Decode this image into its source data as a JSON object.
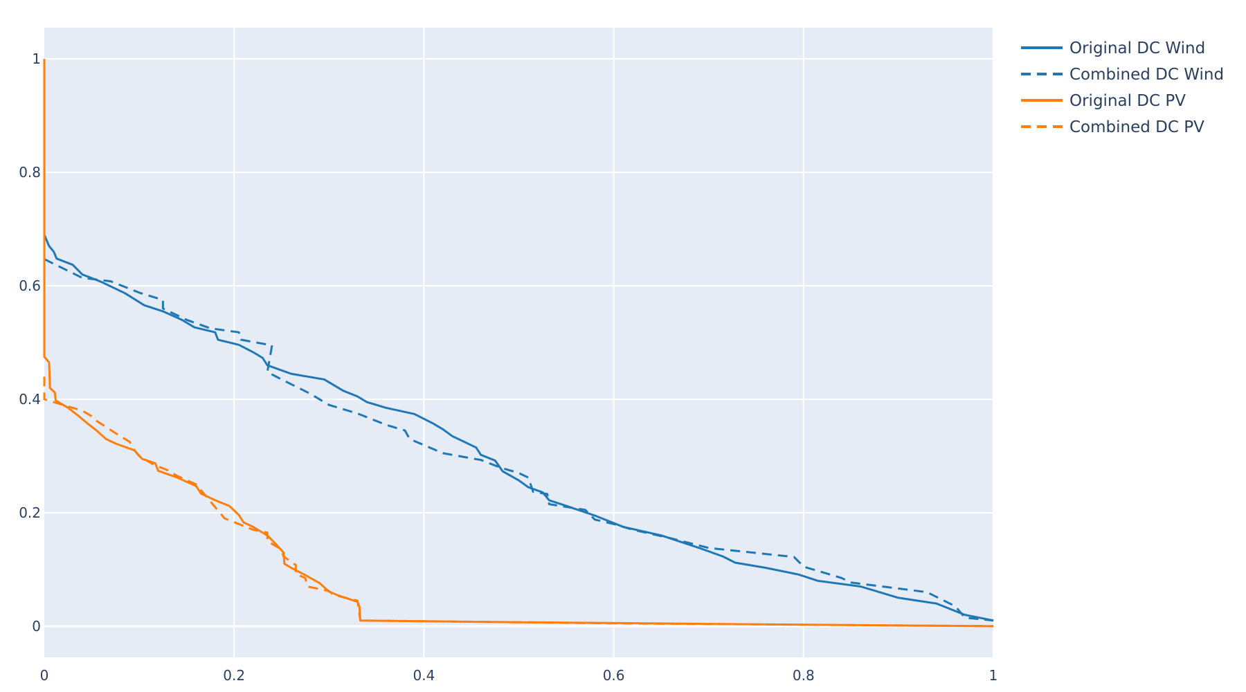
{
  "chart_data": {
    "type": "line",
    "title": "",
    "xlabel": "",
    "ylabel": "",
    "xlim": [
      0,
      1
    ],
    "ylim": [
      -0.055,
      1.055
    ],
    "x_ticks": [
      0,
      0.2,
      0.4,
      0.6,
      0.8,
      1
    ],
    "x_tick_labels": [
      "0",
      "0.2",
      "0.4",
      "0.6",
      "0.8",
      "1"
    ],
    "y_ticks": [
      0,
      0.2,
      0.4,
      0.6,
      0.8,
      1
    ],
    "y_tick_labels": [
      "0",
      "0.2",
      "0.4",
      "0.6",
      "0.8",
      "1"
    ],
    "grid": true,
    "plot_background": "#e5ecf6",
    "legend_position": "top-right outside plot",
    "series": [
      {
        "name": "Original DC Wind",
        "color": "#1f77b4",
        "dash": "solid",
        "points": [
          [
            0,
            0.69
          ],
          [
            0.005,
            0.67
          ],
          [
            0.01,
            0.66
          ],
          [
            0.013,
            0.648
          ],
          [
            0.03,
            0.637
          ],
          [
            0.04,
            0.62
          ],
          [
            0.06,
            0.607
          ],
          [
            0.085,
            0.587
          ],
          [
            0.105,
            0.566
          ],
          [
            0.125,
            0.555
          ],
          [
            0.145,
            0.54
          ],
          [
            0.158,
            0.527
          ],
          [
            0.18,
            0.518
          ],
          [
            0.183,
            0.505
          ],
          [
            0.205,
            0.496
          ],
          [
            0.22,
            0.483
          ],
          [
            0.23,
            0.473
          ],
          [
            0.235,
            0.46
          ],
          [
            0.26,
            0.445
          ],
          [
            0.295,
            0.435
          ],
          [
            0.315,
            0.415
          ],
          [
            0.33,
            0.405
          ],
          [
            0.34,
            0.395
          ],
          [
            0.36,
            0.385
          ],
          [
            0.39,
            0.374
          ],
          [
            0.41,
            0.357
          ],
          [
            0.42,
            0.347
          ],
          [
            0.43,
            0.335
          ],
          [
            0.455,
            0.315
          ],
          [
            0.46,
            0.302
          ],
          [
            0.475,
            0.292
          ],
          [
            0.483,
            0.273
          ],
          [
            0.5,
            0.257
          ],
          [
            0.51,
            0.245
          ],
          [
            0.525,
            0.236
          ],
          [
            0.532,
            0.222
          ],
          [
            0.55,
            0.212
          ],
          [
            0.58,
            0.195
          ],
          [
            0.61,
            0.175
          ],
          [
            0.65,
            0.16
          ],
          [
            0.69,
            0.138
          ],
          [
            0.715,
            0.123
          ],
          [
            0.728,
            0.112
          ],
          [
            0.76,
            0.103
          ],
          [
            0.795,
            0.091
          ],
          [
            0.815,
            0.08
          ],
          [
            0.86,
            0.07
          ],
          [
            0.9,
            0.05
          ],
          [
            0.94,
            0.04
          ],
          [
            0.97,
            0.02
          ],
          [
            1,
            0.01
          ]
        ]
      },
      {
        "name": "Combined DC Wind",
        "color": "#1f77b4",
        "dash": "dash",
        "points": [
          [
            0,
            0.647
          ],
          [
            0.04,
            0.614
          ],
          [
            0.07,
            0.608
          ],
          [
            0.1,
            0.588
          ],
          [
            0.125,
            0.575
          ],
          [
            0.125,
            0.56
          ],
          [
            0.15,
            0.54
          ],
          [
            0.175,
            0.525
          ],
          [
            0.205,
            0.518
          ],
          [
            0.207,
            0.505
          ],
          [
            0.24,
            0.495
          ],
          [
            0.235,
            0.448
          ],
          [
            0.25,
            0.435
          ],
          [
            0.28,
            0.41
          ],
          [
            0.3,
            0.39
          ],
          [
            0.33,
            0.375
          ],
          [
            0.36,
            0.355
          ],
          [
            0.38,
            0.345
          ],
          [
            0.385,
            0.33
          ],
          [
            0.42,
            0.305
          ],
          [
            0.46,
            0.293
          ],
          [
            0.48,
            0.28
          ],
          [
            0.5,
            0.27
          ],
          [
            0.51,
            0.262
          ],
          [
            0.515,
            0.237
          ],
          [
            0.53,
            0.233
          ],
          [
            0.532,
            0.215
          ],
          [
            0.57,
            0.205
          ],
          [
            0.58,
            0.188
          ],
          [
            0.6,
            0.18
          ],
          [
            0.62,
            0.17
          ],
          [
            0.66,
            0.155
          ],
          [
            0.7,
            0.138
          ],
          [
            0.79,
            0.122
          ],
          [
            0.8,
            0.105
          ],
          [
            0.84,
            0.085
          ],
          [
            0.85,
            0.077
          ],
          [
            0.93,
            0.06
          ],
          [
            0.96,
            0.035
          ],
          [
            0.97,
            0.015
          ],
          [
            1,
            0.01
          ]
        ]
      },
      {
        "name": "Original DC PV",
        "color": "#ff7f0e",
        "dash": "solid",
        "points": [
          [
            0,
            1.0
          ],
          [
            0,
            0.475
          ],
          [
            0.005,
            0.465
          ],
          [
            0.006,
            0.42
          ],
          [
            0.011,
            0.412
          ],
          [
            0.012,
            0.398
          ],
          [
            0.025,
            0.385
          ],
          [
            0.035,
            0.372
          ],
          [
            0.045,
            0.358
          ],
          [
            0.055,
            0.345
          ],
          [
            0.065,
            0.33
          ],
          [
            0.075,
            0.322
          ],
          [
            0.095,
            0.31
          ],
          [
            0.103,
            0.295
          ],
          [
            0.117,
            0.287
          ],
          [
            0.12,
            0.274
          ],
          [
            0.14,
            0.262
          ],
          [
            0.16,
            0.247
          ],
          [
            0.165,
            0.234
          ],
          [
            0.18,
            0.222
          ],
          [
            0.195,
            0.212
          ],
          [
            0.205,
            0.196
          ],
          [
            0.21,
            0.183
          ],
          [
            0.22,
            0.175
          ],
          [
            0.235,
            0.16
          ],
          [
            0.245,
            0.143
          ],
          [
            0.252,
            0.13
          ],
          [
            0.253,
            0.11
          ],
          [
            0.26,
            0.103
          ],
          [
            0.275,
            0.09
          ],
          [
            0.29,
            0.076
          ],
          [
            0.3,
            0.061
          ],
          [
            0.31,
            0.054
          ],
          [
            0.33,
            0.043
          ],
          [
            0.332,
            0.035
          ],
          [
            0.333,
            0.01
          ],
          [
            0.5,
            0.007
          ],
          [
            0.7,
            0.004
          ],
          [
            0.85,
            0.002
          ],
          [
            1,
            0.0
          ]
        ]
      },
      {
        "name": "Combined DC PV",
        "color": "#ff7f0e",
        "dash": "dash",
        "points": [
          [
            0,
            0.44
          ],
          [
            0,
            0.4
          ],
          [
            0.02,
            0.39
          ],
          [
            0.04,
            0.38
          ],
          [
            0.05,
            0.37
          ],
          [
            0.055,
            0.362
          ],
          [
            0.08,
            0.335
          ],
          [
            0.09,
            0.325
          ],
          [
            0.095,
            0.31
          ],
          [
            0.1,
            0.3
          ],
          [
            0.11,
            0.29
          ],
          [
            0.115,
            0.285
          ],
          [
            0.13,
            0.275
          ],
          [
            0.14,
            0.265
          ],
          [
            0.16,
            0.25
          ],
          [
            0.165,
            0.24
          ],
          [
            0.185,
            0.2
          ],
          [
            0.19,
            0.19
          ],
          [
            0.205,
            0.18
          ],
          [
            0.22,
            0.17
          ],
          [
            0.235,
            0.165
          ],
          [
            0.235,
            0.15
          ],
          [
            0.25,
            0.135
          ],
          [
            0.252,
            0.123
          ],
          [
            0.265,
            0.108
          ],
          [
            0.265,
            0.092
          ],
          [
            0.275,
            0.085
          ],
          [
            0.277,
            0.07
          ],
          [
            0.3,
            0.062
          ],
          [
            0.305,
            0.055
          ],
          [
            0.33,
            0.045
          ],
          [
            0.333,
            0.01
          ],
          [
            0.6,
            0.005
          ],
          [
            0.85,
            0.002
          ],
          [
            1,
            0.0
          ]
        ]
      }
    ]
  }
}
